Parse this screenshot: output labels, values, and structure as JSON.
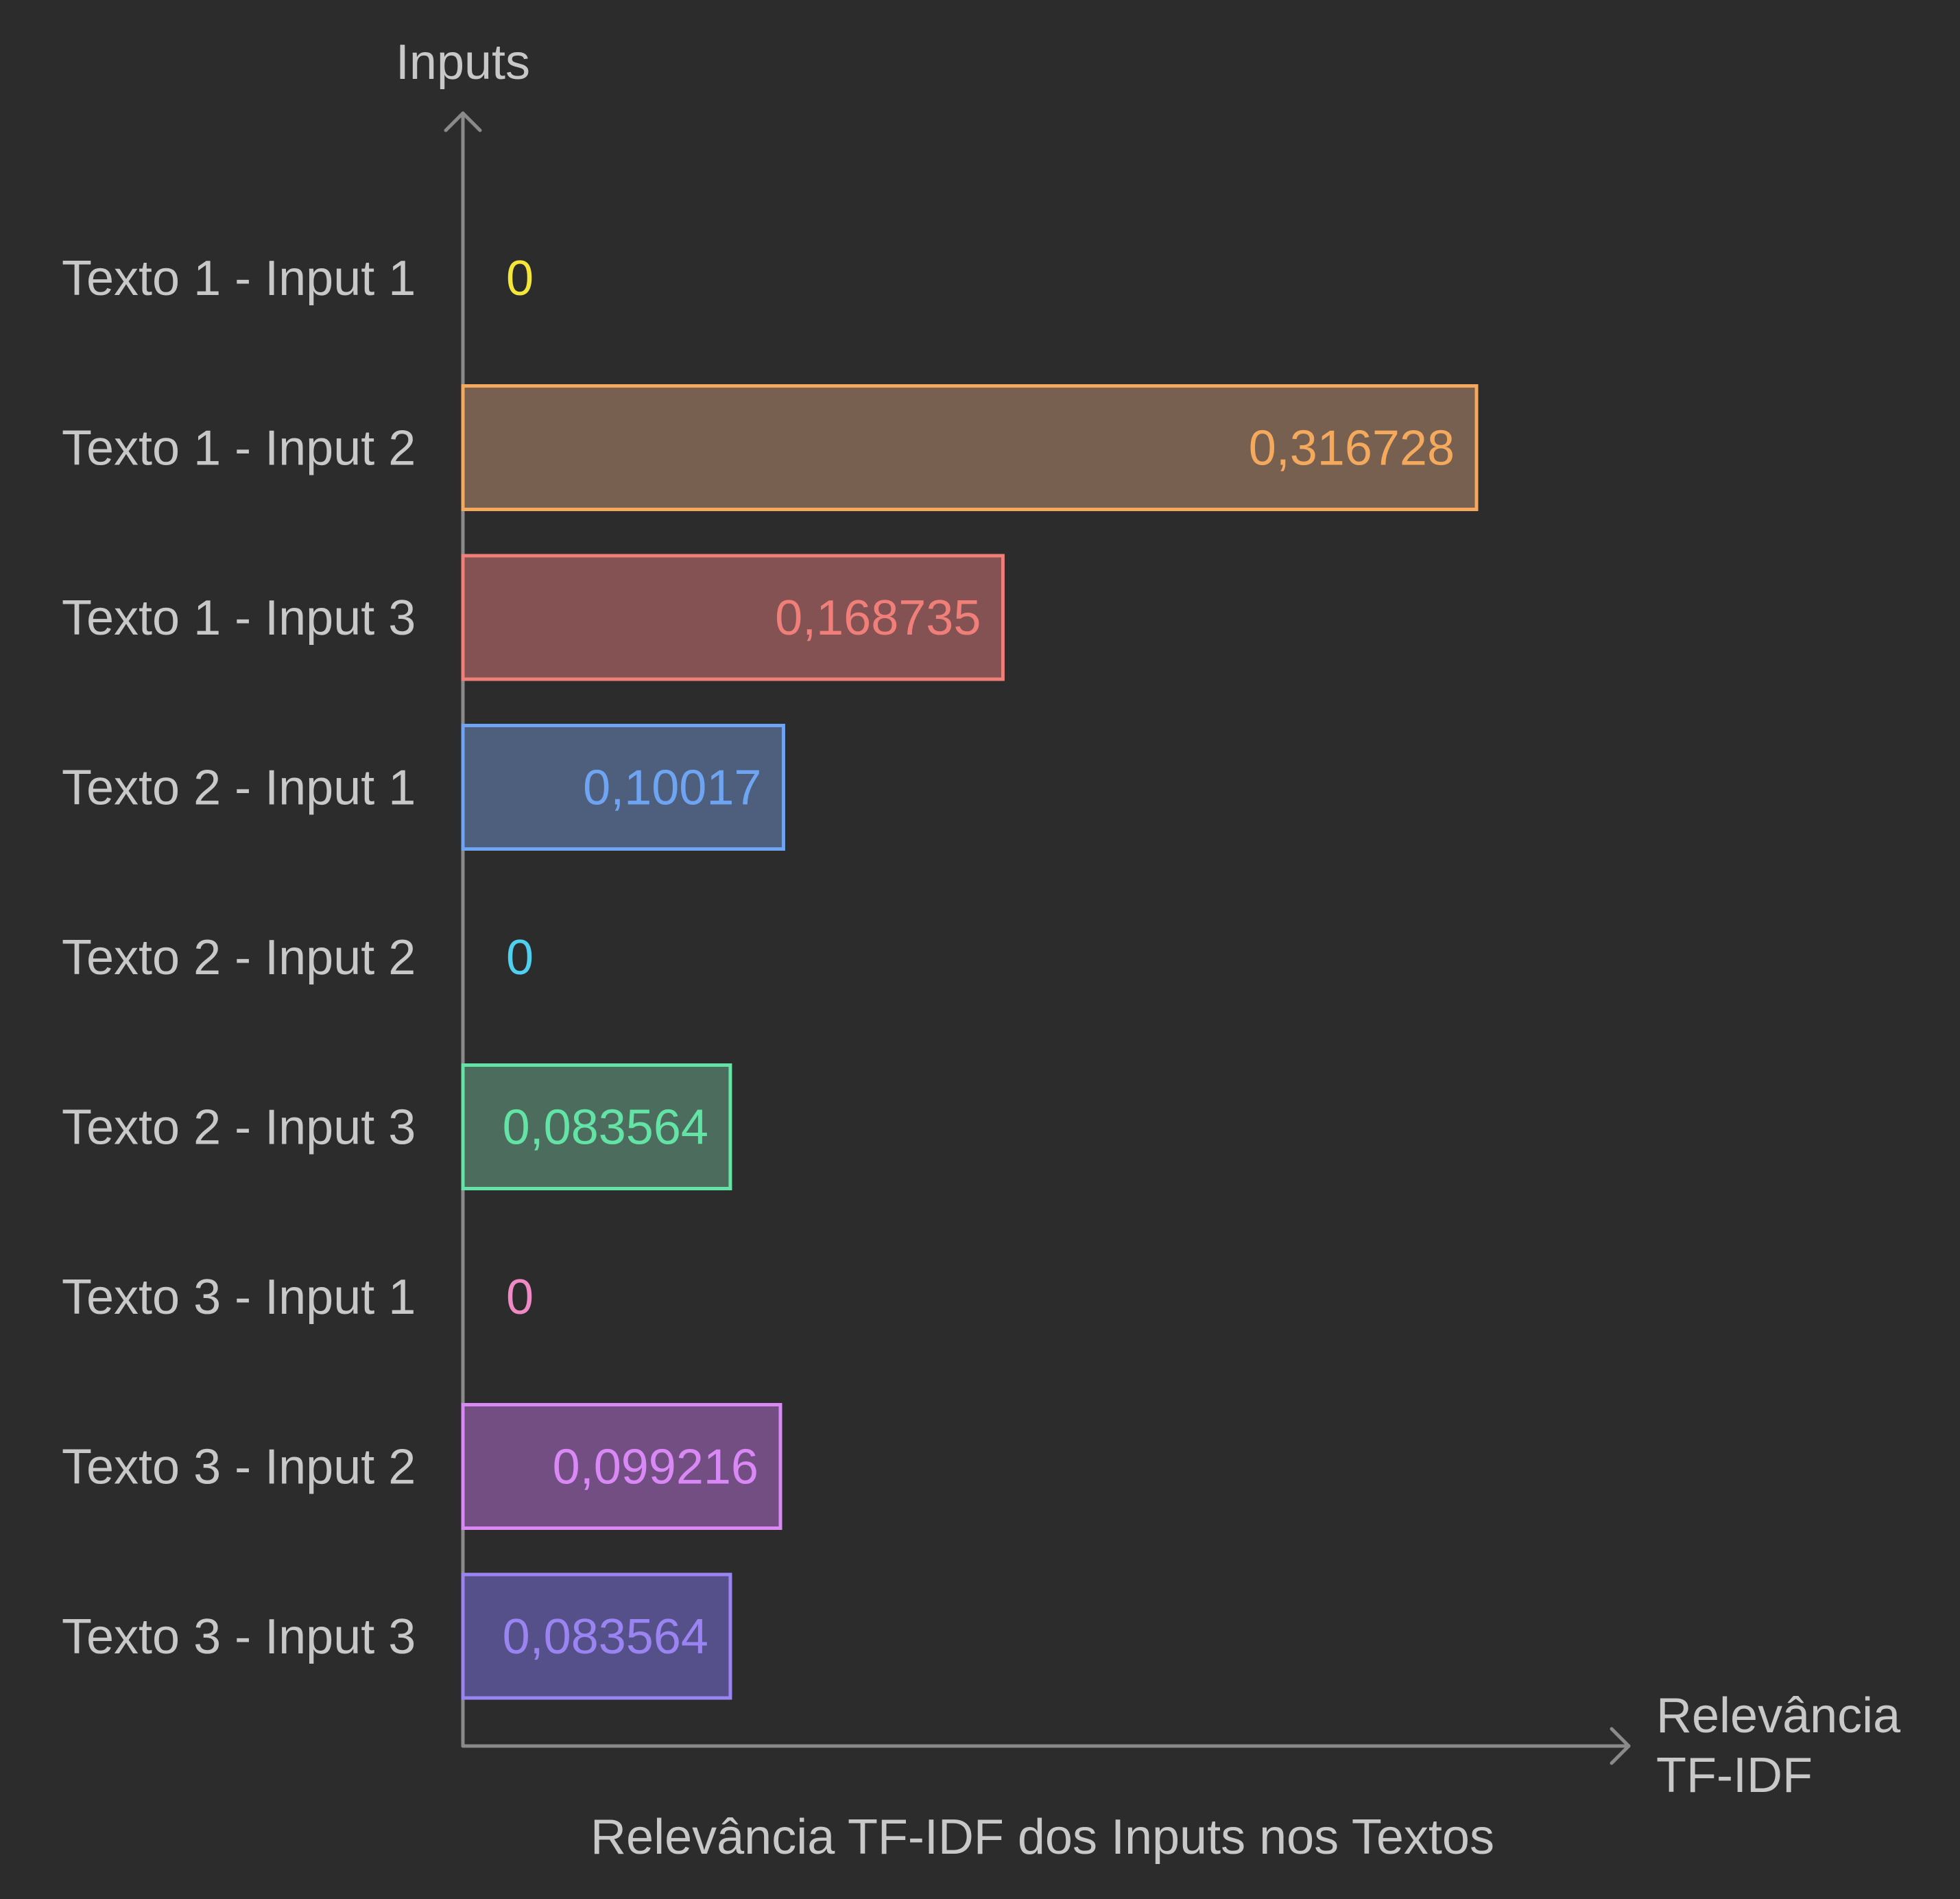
{
  "chart_data": {
    "type": "bar",
    "orientation": "horizontal",
    "title": "Relevância TF-IDF dos Inputs nos Textos",
    "ylabel": "Inputs",
    "xlabel_lines": [
      "Relevância",
      "TF-IDF"
    ],
    "categories": [
      "Texto 1 - Input 1",
      "Texto 1 - Input 2",
      "Texto 1 - Input 3",
      "Texto 2 - Input 1",
      "Texto 2 - Input 2",
      "Texto 2 - Input 3",
      "Texto 3 - Input 1",
      "Texto 3 - Input 2",
      "Texto 3 - Input 3"
    ],
    "values": [
      0,
      0.316728,
      0.168735,
      0.10017,
      0,
      0.083564,
      0,
      0.099216,
      0.083564
    ],
    "value_labels": [
      "0",
      "0,316728",
      "0,168735",
      "0,10017",
      "0",
      "0,083564",
      "0",
      "0,099216",
      "0,083564"
    ],
    "colors": [
      "#f5e73a",
      "#f5a95c",
      "#f07f7a",
      "#6fa4f2",
      "#4fd0ee",
      "#63e3a6",
      "#f08ac5",
      "#d988f5",
      "#9a84f2"
    ],
    "fills": [
      "#6e6a30",
      "#776050",
      "#845252",
      "#4e5f7e",
      "#3e6672",
      "#4c6d5e",
      "#71506a",
      "#724e82",
      "#56508a"
    ],
    "grid": false,
    "legend": "none"
  }
}
